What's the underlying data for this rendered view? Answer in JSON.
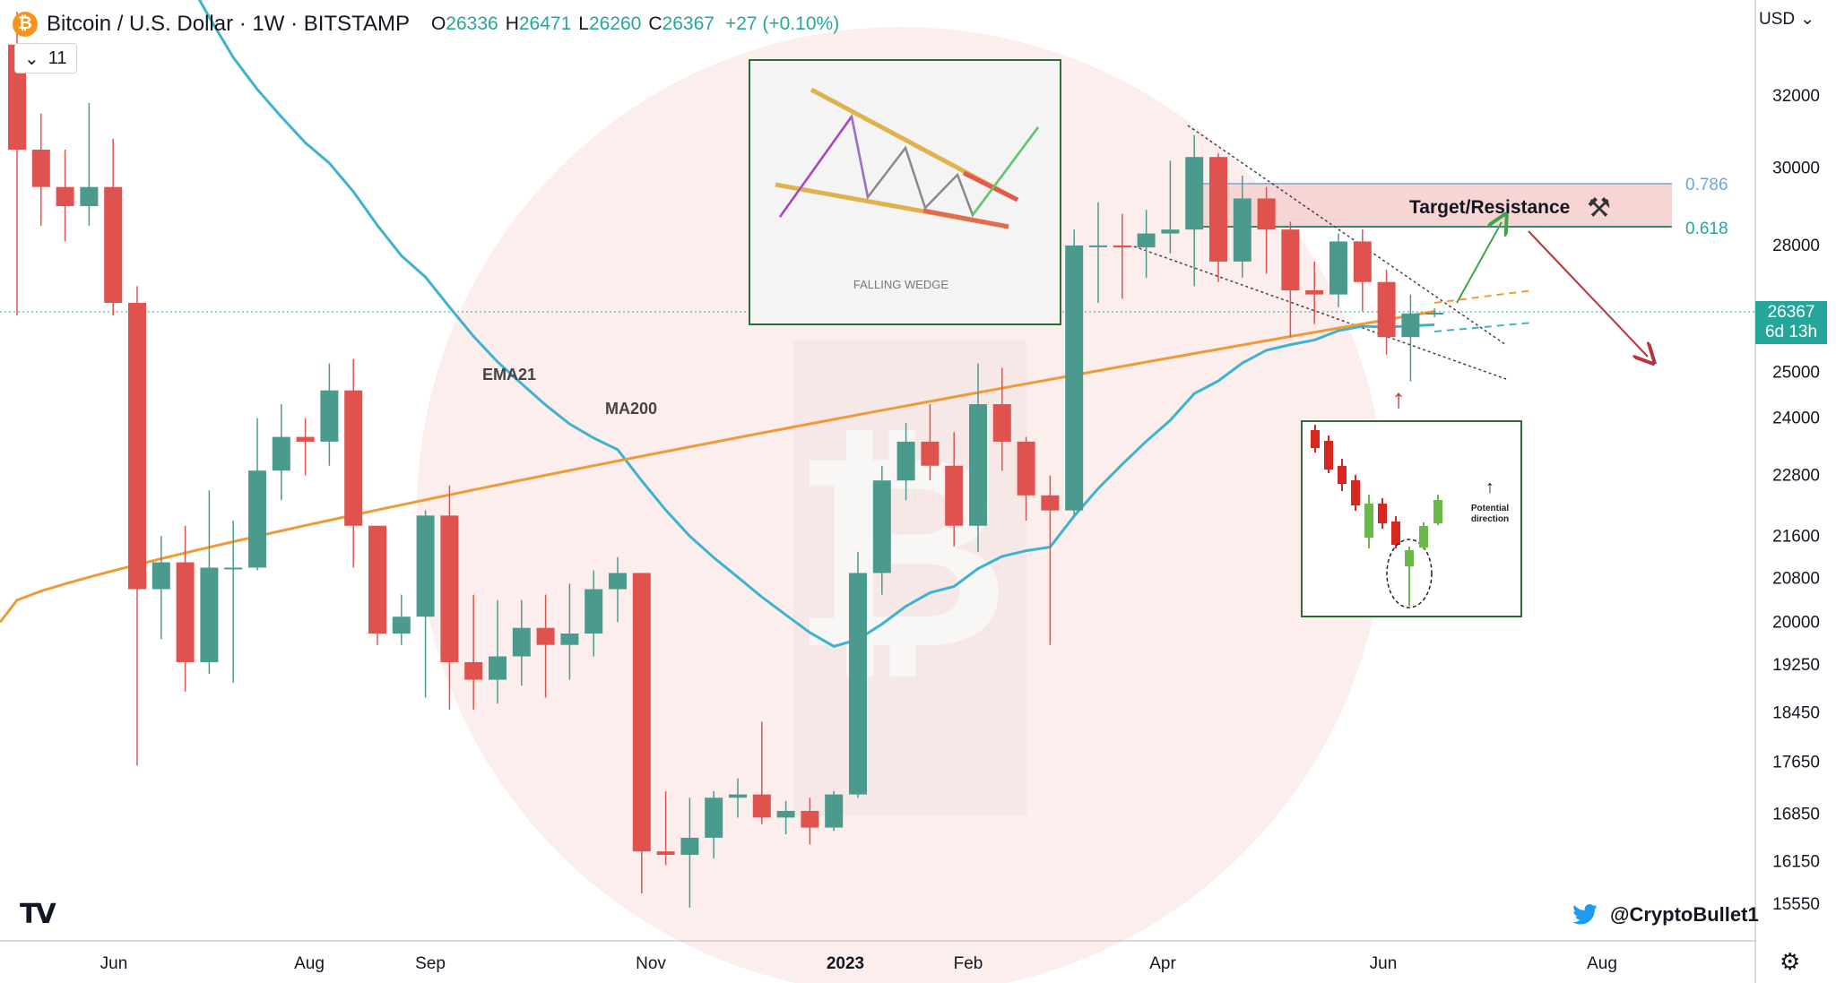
{
  "header": {
    "title": "Bitcoin / U.S. Dollar · 1W · BITSTAMP",
    "logo_glyph": "₿",
    "open_key": "O",
    "open": "26336",
    "high_key": "H",
    "high": "26471",
    "low_key": "L",
    "low": "26260",
    "close_key": "C",
    "close": "26367",
    "change": "+27 (+0.10%)"
  },
  "indicators_button": {
    "chevron": "⌄",
    "count": "11"
  },
  "currency": {
    "label": "USD",
    "chevron": "⌄"
  },
  "price_tag": {
    "price": "26367",
    "countdown": "6d 13h"
  },
  "branding": {
    "tv_logo": "TV",
    "handle": "@CryptoBullet1"
  },
  "colors": {
    "up": "#4a9b8e",
    "down": "#e0524e",
    "ema": "#3fb2cf",
    "ma": "#ef9a36",
    "box_border": "#2e6b3a",
    "target_zone": "#f7d5d5"
  },
  "chart_data": {
    "type": "candlestick",
    "symbol": "Bitcoin / U.S. Dollar",
    "timeframe": "1W",
    "exchange": "BITSTAMP",
    "y_axis": {
      "scale": "log",
      "ticks": [
        32000,
        30000,
        28000,
        25000,
        24000,
        22800,
        21600,
        20800,
        20000,
        19250,
        18450,
        17650,
        16850,
        16150,
        15550
      ]
    },
    "x_axis": {
      "ticks": [
        "Jun",
        "Aug",
        "Sep",
        "Nov",
        "2023",
        "Feb",
        "Apr",
        "Jun",
        "Aug"
      ]
    },
    "candles": [
      {
        "o": 33500,
        "h": 34500,
        "l": 26300,
        "c": 30500
      },
      {
        "o": 30500,
        "h": 31500,
        "l": 28500,
        "c": 29500
      },
      {
        "o": 29500,
        "h": 30500,
        "l": 28100,
        "c": 29000
      },
      {
        "o": 29000,
        "h": 31800,
        "l": 28500,
        "c": 29500
      },
      {
        "o": 29500,
        "h": 30800,
        "l": 26300,
        "c": 26600
      },
      {
        "o": 26600,
        "h": 27000,
        "l": 17600,
        "c": 20600
      },
      {
        "o": 20600,
        "h": 21600,
        "l": 19700,
        "c": 21100
      },
      {
        "o": 21100,
        "h": 21800,
        "l": 18800,
        "c": 19300
      },
      {
        "o": 19300,
        "h": 22500,
        "l": 19100,
        "c": 21000
      },
      {
        "o": 21000,
        "h": 21900,
        "l": 18950,
        "c": 21000
      },
      {
        "o": 21000,
        "h": 24000,
        "l": 20950,
        "c": 22900
      },
      {
        "o": 22900,
        "h": 24300,
        "l": 22300,
        "c": 23600
      },
      {
        "o": 23600,
        "h": 24000,
        "l": 22800,
        "c": 23500
      },
      {
        "o": 23500,
        "h": 25200,
        "l": 23000,
        "c": 24600
      },
      {
        "o": 24600,
        "h": 25300,
        "l": 21000,
        "c": 21800
      },
      {
        "o": 21800,
        "h": 21800,
        "l": 19600,
        "c": 19800
      },
      {
        "o": 19800,
        "h": 20500,
        "l": 19600,
        "c": 20100
      },
      {
        "o": 20100,
        "h": 22100,
        "l": 18700,
        "c": 22000
      },
      {
        "o": 22000,
        "h": 22600,
        "l": 18500,
        "c": 19300
      },
      {
        "o": 19300,
        "h": 20500,
        "l": 18500,
        "c": 19000
      },
      {
        "o": 19000,
        "h": 20400,
        "l": 18600,
        "c": 19400
      },
      {
        "o": 19400,
        "h": 20400,
        "l": 18900,
        "c": 19900
      },
      {
        "o": 19900,
        "h": 20500,
        "l": 18700,
        "c": 19600
      },
      {
        "o": 19600,
        "h": 20700,
        "l": 19000,
        "c": 19800
      },
      {
        "o": 19800,
        "h": 20950,
        "l": 19400,
        "c": 20600
      },
      {
        "o": 20600,
        "h": 21200,
        "l": 20000,
        "c": 20900
      },
      {
        "o": 20900,
        "h": 20900,
        "l": 15700,
        "c": 16300
      },
      {
        "o": 16300,
        "h": 17200,
        "l": 16100,
        "c": 16250
      },
      {
        "o": 16250,
        "h": 17100,
        "l": 15500,
        "c": 16500
      },
      {
        "o": 16500,
        "h": 17200,
        "l": 16200,
        "c": 17100
      },
      {
        "o": 17100,
        "h": 17400,
        "l": 16800,
        "c": 17150
      },
      {
        "o": 17150,
        "h": 18300,
        "l": 16700,
        "c": 16800
      },
      {
        "o": 16800,
        "h": 17050,
        "l": 16550,
        "c": 16900
      },
      {
        "o": 16900,
        "h": 17100,
        "l": 16400,
        "c": 16650
      },
      {
        "o": 16650,
        "h": 17200,
        "l": 16600,
        "c": 17150
      },
      {
        "o": 17150,
        "h": 21300,
        "l": 17100,
        "c": 20900
      },
      {
        "o": 20900,
        "h": 23000,
        "l": 20500,
        "c": 22700
      },
      {
        "o": 22700,
        "h": 23900,
        "l": 22300,
        "c": 23500
      },
      {
        "o": 23500,
        "h": 24300,
        "l": 22700,
        "c": 23000
      },
      {
        "o": 23000,
        "h": 23700,
        "l": 21400,
        "c": 21800
      },
      {
        "o": 21800,
        "h": 25200,
        "l": 21300,
        "c": 24300
      },
      {
        "o": 24300,
        "h": 25100,
        "l": 22900,
        "c": 23500
      },
      {
        "o": 23500,
        "h": 23600,
        "l": 21900,
        "c": 22400
      },
      {
        "o": 22400,
        "h": 22800,
        "l": 19600,
        "c": 22100
      },
      {
        "o": 22100,
        "h": 28400,
        "l": 22000,
        "c": 28000
      },
      {
        "o": 28000,
        "h": 29100,
        "l": 26600,
        "c": 28000
      },
      {
        "o": 28000,
        "h": 28800,
        "l": 26700,
        "c": 27950
      },
      {
        "o": 27950,
        "h": 28900,
        "l": 27200,
        "c": 28300
      },
      {
        "o": 28300,
        "h": 30200,
        "l": 27800,
        "c": 28400
      },
      {
        "o": 28400,
        "h": 30900,
        "l": 27000,
        "c": 30300
      },
      {
        "o": 30300,
        "h": 30400,
        "l": 27100,
        "c": 27600
      },
      {
        "o": 27600,
        "h": 29800,
        "l": 27200,
        "c": 29200
      },
      {
        "o": 29200,
        "h": 29500,
        "l": 27300,
        "c": 28400
      },
      {
        "o": 28400,
        "h": 28600,
        "l": 25800,
        "c": 26900
      },
      {
        "o": 26900,
        "h": 27600,
        "l": 26100,
        "c": 26800
      },
      {
        "o": 26800,
        "h": 28300,
        "l": 26500,
        "c": 28100
      },
      {
        "o": 28100,
        "h": 28400,
        "l": 26400,
        "c": 27100
      },
      {
        "o": 27100,
        "h": 27400,
        "l": 25400,
        "c": 25800
      },
      {
        "o": 25800,
        "h": 26800,
        "l": 24800,
        "c": 26350
      },
      {
        "o": 26336,
        "h": 26471,
        "l": 26260,
        "c": 26367
      }
    ],
    "series": [
      {
        "name": "EMA21",
        "color": "#3fb2cf"
      },
      {
        "name": "MA200",
        "color": "#ef9a36"
      }
    ],
    "annotations": [
      {
        "type": "fib_level",
        "label": "0.786"
      },
      {
        "type": "fib_level",
        "label": "0.618"
      },
      {
        "type": "zone",
        "label": "Target/Resistance"
      },
      {
        "type": "inset",
        "label": "FALLING WEDGE"
      },
      {
        "type": "inset",
        "label": "Potential direction"
      }
    ],
    "fib_levels": [
      {
        "label": "0.786",
        "price": 29500
      },
      {
        "label": "0.618",
        "price": 28400
      }
    ],
    "last_price": 26367
  }
}
